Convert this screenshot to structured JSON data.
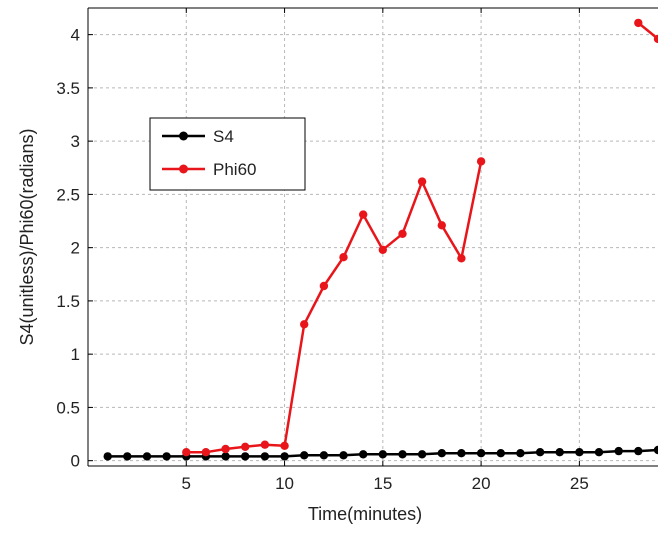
{
  "chart_data": {
    "type": "line",
    "title": "",
    "xlabel": "Time(minutes)",
    "ylabel": "S4(unitless)/Phi60(radians)",
    "xlim": [
      0,
      29
    ],
    "ylim": [
      -0.05,
      4.25
    ],
    "grid": true,
    "legend_position": "upper-left",
    "xticks": [
      5,
      10,
      15,
      20,
      25
    ],
    "xtick_labels": [
      "5",
      "10",
      "15",
      "20",
      "25"
    ],
    "yticks": [
      0,
      0.5,
      1,
      1.5,
      2,
      2.5,
      3,
      3.5,
      4
    ],
    "ytick_labels": [
      "0",
      "0.5",
      "1",
      "1.5",
      "2",
      "2.5",
      "3",
      "3.5",
      "4"
    ],
    "series": [
      {
        "name": "S4",
        "color": "#000000",
        "segments": [
          {
            "x": [
              1,
              2,
              3,
              4,
              5,
              6,
              7,
              8,
              9,
              10,
              11,
              12,
              13,
              14,
              15,
              16,
              17,
              18,
              19,
              20,
              21,
              22,
              23,
              24,
              25,
              26,
              27,
              28,
              29
            ],
            "y": [
              0.04,
              0.04,
              0.04,
              0.04,
              0.04,
              0.04,
              0.04,
              0.04,
              0.04,
              0.04,
              0.05,
              0.05,
              0.05,
              0.06,
              0.06,
              0.06,
              0.06,
              0.07,
              0.07,
              0.07,
              0.07,
              0.07,
              0.08,
              0.08,
              0.08,
              0.08,
              0.09,
              0.09,
              0.1
            ]
          }
        ]
      },
      {
        "name": "Phi60",
        "color": "#e8161b",
        "segments": [
          {
            "x": [
              5,
              6,
              7,
              8,
              9,
              10,
              11,
              12,
              13,
              14,
              15,
              16,
              17,
              18,
              19,
              20
            ],
            "y": [
              0.08,
              0.08,
              0.11,
              0.13,
              0.15,
              0.14,
              1.28,
              1.64,
              1.91,
              2.31,
              1.98,
              2.13,
              2.62,
              2.21,
              1.9,
              2.81
            ]
          },
          {
            "x": [
              28,
              29
            ],
            "y": [
              4.11,
              3.96
            ]
          }
        ]
      }
    ]
  }
}
